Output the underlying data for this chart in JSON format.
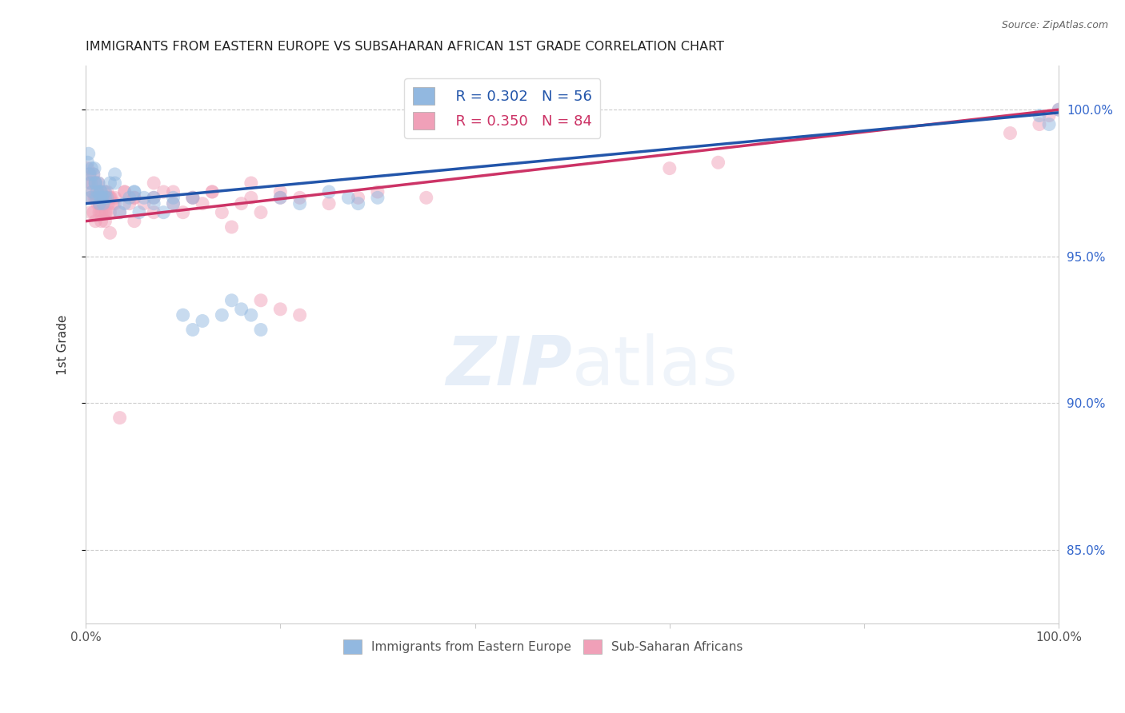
{
  "title": "IMMIGRANTS FROM EASTERN EUROPE VS SUBSAHARAN AFRICAN 1ST GRADE CORRELATION CHART",
  "source": "Source: ZipAtlas.com",
  "ylabel": "1st Grade",
  "legend_blue_r": "R = 0.302",
  "legend_blue_n": "N = 56",
  "legend_pink_r": "R = 0.350",
  "legend_pink_n": "N = 84",
  "blue_color": "#92b8e0",
  "pink_color": "#f0a0b8",
  "blue_line_color": "#2255aa",
  "pink_line_color": "#cc3366",
  "blue_scatter_x": [
    0.2,
    0.3,
    0.4,
    0.5,
    0.6,
    0.7,
    0.8,
    0.9,
    1.0,
    1.1,
    1.2,
    1.3,
    1.4,
    1.5,
    1.6,
    1.7,
    1.8,
    2.0,
    2.2,
    2.5,
    3.0,
    3.5,
    4.0,
    4.5,
    5.0,
    5.5,
    6.0,
    7.0,
    8.0,
    9.0,
    10.0,
    11.0,
    12.0,
    14.0,
    15.0,
    16.0,
    17.0,
    18.0,
    20.0,
    22.0,
    25.0,
    27.0,
    28.0,
    30.0,
    98.0,
    99.0,
    100.0,
    0.5,
    1.0,
    1.5,
    2.0,
    3.0,
    5.0,
    7.0,
    9.0,
    11.0
  ],
  "blue_scatter_y": [
    98.2,
    98.5,
    97.8,
    97.5,
    98.0,
    97.2,
    97.8,
    98.0,
    97.5,
    97.0,
    97.2,
    97.5,
    96.8,
    97.0,
    97.2,
    97.0,
    96.8,
    97.2,
    97.0,
    97.5,
    97.8,
    96.5,
    96.8,
    97.0,
    97.2,
    96.5,
    97.0,
    96.8,
    96.5,
    97.0,
    93.0,
    92.5,
    92.8,
    93.0,
    93.5,
    93.2,
    93.0,
    92.5,
    97.0,
    96.8,
    97.2,
    97.0,
    96.8,
    97.0,
    99.8,
    99.5,
    100.0,
    97.0,
    97.5,
    97.2,
    97.0,
    97.5,
    97.2,
    97.0,
    96.8,
    97.0
  ],
  "pink_scatter_x": [
    0.2,
    0.3,
    0.4,
    0.5,
    0.6,
    0.7,
    0.8,
    0.9,
    1.0,
    1.1,
    1.2,
    1.3,
    1.4,
    1.5,
    1.6,
    1.7,
    1.8,
    1.9,
    2.0,
    2.1,
    2.2,
    2.3,
    2.4,
    2.5,
    2.6,
    2.8,
    3.0,
    3.5,
    4.0,
    4.5,
    5.0,
    6.0,
    7.0,
    8.0,
    9.0,
    10.0,
    11.0,
    12.0,
    13.0,
    14.0,
    15.0,
    16.0,
    17.0,
    18.0,
    20.0,
    22.0,
    25.0,
    28.0,
    30.0,
    35.0,
    0.5,
    1.0,
    1.5,
    2.0,
    2.5,
    3.0,
    4.0,
    5.0,
    7.0,
    9.0,
    11.0,
    13.0,
    17.0,
    20.0,
    60.0,
    65.0,
    95.0,
    98.0,
    99.0,
    100.0,
    18.0,
    20.0,
    22.0,
    0.8,
    1.0,
    1.2,
    1.4,
    1.6,
    1.8,
    2.0,
    2.5,
    3.5,
    5.0,
    7.0
  ],
  "pink_scatter_y": [
    98.0,
    97.5,
    97.8,
    97.0,
    97.5,
    97.2,
    97.8,
    97.0,
    97.5,
    97.2,
    97.0,
    97.5,
    96.8,
    97.2,
    96.5,
    97.0,
    96.8,
    97.2,
    97.0,
    96.5,
    97.2,
    96.8,
    97.0,
    96.5,
    97.0,
    96.8,
    97.0,
    96.5,
    97.2,
    96.8,
    97.0,
    96.8,
    97.0,
    97.2,
    96.8,
    96.5,
    97.0,
    96.8,
    97.2,
    96.5,
    96.0,
    96.8,
    97.0,
    96.5,
    97.2,
    97.0,
    96.8,
    97.0,
    97.2,
    97.0,
    96.5,
    97.0,
    96.8,
    96.5,
    97.0,
    96.8,
    97.2,
    97.0,
    97.5,
    97.2,
    97.0,
    97.2,
    97.5,
    97.0,
    98.0,
    98.2,
    99.2,
    99.5,
    99.8,
    100.0,
    93.5,
    93.2,
    93.0,
    96.5,
    96.2,
    96.8,
    96.5,
    96.2,
    96.5,
    96.2,
    95.8,
    89.5,
    96.2,
    96.5
  ],
  "blue_trend_x": [
    0,
    100
  ],
  "blue_trend_y_start": 96.8,
  "blue_trend_y_end": 99.9,
  "pink_trend_y_start": 96.2,
  "pink_trend_y_end": 100.0,
  "xlim": [
    0,
    100
  ],
  "ylim": [
    82.5,
    101.5
  ],
  "yticks": [
    85,
    90,
    95,
    100
  ],
  "ytick_labels": [
    "85.0%",
    "90.0%",
    "95.0%",
    "100.0%"
  ],
  "xtick_positions": [
    0,
    20,
    40,
    60,
    80,
    100
  ],
  "xtick_labels": [
    "0.0%",
    "",
    "",
    "",
    "",
    "100.0%"
  ]
}
